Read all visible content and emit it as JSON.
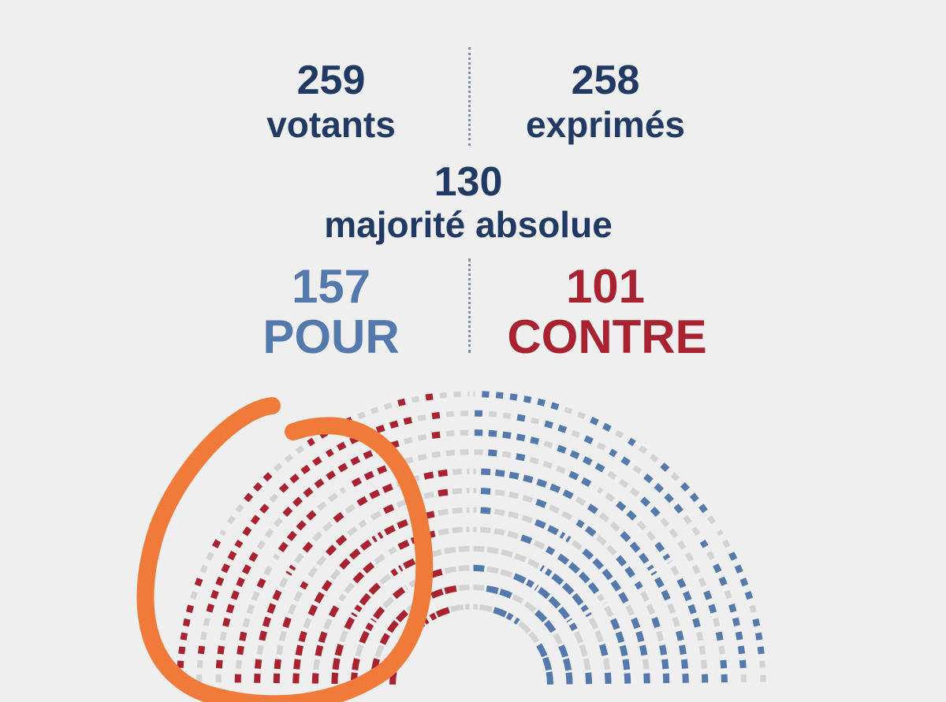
{
  "summary": {
    "votants": {
      "value": "259",
      "label": "votants"
    },
    "exprimes": {
      "value": "258",
      "label": "exprimés"
    },
    "majorite": {
      "value": "130",
      "label": "majorité absolue"
    },
    "pour": {
      "value": "157",
      "label": "POUR"
    },
    "contre": {
      "value": "101",
      "label": "CONTRE"
    }
  },
  "chart_data": {
    "type": "hemicycle",
    "title": "",
    "series": [
      {
        "name": "POUR",
        "value": 157,
        "color": "#5479ad"
      },
      {
        "name": "CONTRE",
        "value": 101,
        "color": "#a8222f"
      }
    ],
    "empty_seat_color": "#d3d3d3",
    "annotation": {
      "shape": "hand-drawn circle",
      "color": "#f07a3a",
      "target": "CONTRE"
    }
  },
  "colors": {
    "navy": "#213a63",
    "pour": "#5479ad",
    "contre": "#a8222f",
    "background": "#efefef",
    "annotation": "#f07a3a"
  }
}
